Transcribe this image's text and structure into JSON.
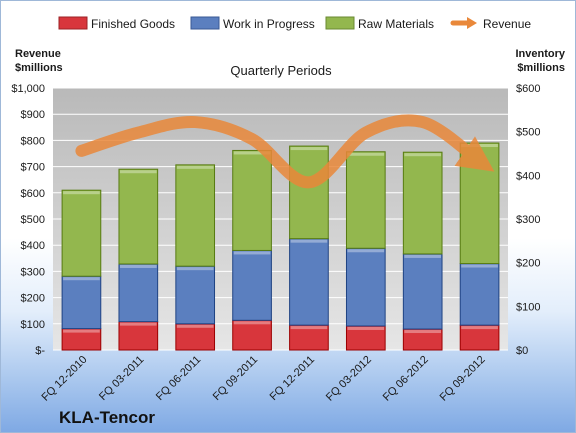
{
  "chart_data": {
    "type": "bar",
    "stacked": true,
    "subtitle": "Quarterly Periods",
    "company": "KLA-Tencor",
    "categories": [
      "FQ 12-2010",
      "FQ 03-2011",
      "FQ 06-2011",
      "FQ 09-2011",
      "FQ 12-2011",
      "FQ 03-2012",
      "FQ 06-2012",
      "FQ 09-2012"
    ],
    "ylabel_left": [
      "Revenue",
      "$millions"
    ],
    "ylabel_right": [
      "Inventory",
      "$millions"
    ],
    "ylim_left": [
      0,
      1000
    ],
    "ylim_right": [
      0,
      600
    ],
    "left_ticks": [
      "$-",
      "$100",
      "$200",
      "$300",
      "$400",
      "$500",
      "$600",
      "$700",
      "$800",
      "$900",
      "$1,000"
    ],
    "right_ticks": [
      "$0",
      "$100",
      "$200",
      "$300",
      "$400",
      "$500",
      "$600"
    ],
    "grid": true,
    "legend_position": "top",
    "series": [
      {
        "name": "Finished Goods",
        "axis": "right",
        "color": "#d8363c",
        "values": [
          49,
          65,
          60,
          68,
          57,
          55,
          48,
          57
        ]
      },
      {
        "name": "Work in Progress",
        "axis": "right",
        "color": "#5b7fbf",
        "values": [
          120,
          132,
          132,
          160,
          198,
          178,
          172,
          141
        ]
      },
      {
        "name": "Raw Materials",
        "axis": "right",
        "color": "#93b74e",
        "values": [
          197,
          217,
          232,
          229,
          212,
          221,
          233,
          276
        ]
      },
      {
        "name": "Revenue",
        "axis": "left",
        "type": "line",
        "color": "#e9883a",
        "values": [
          760,
          830,
          870,
          805,
          640,
          830,
          870,
          720
        ]
      }
    ]
  }
}
